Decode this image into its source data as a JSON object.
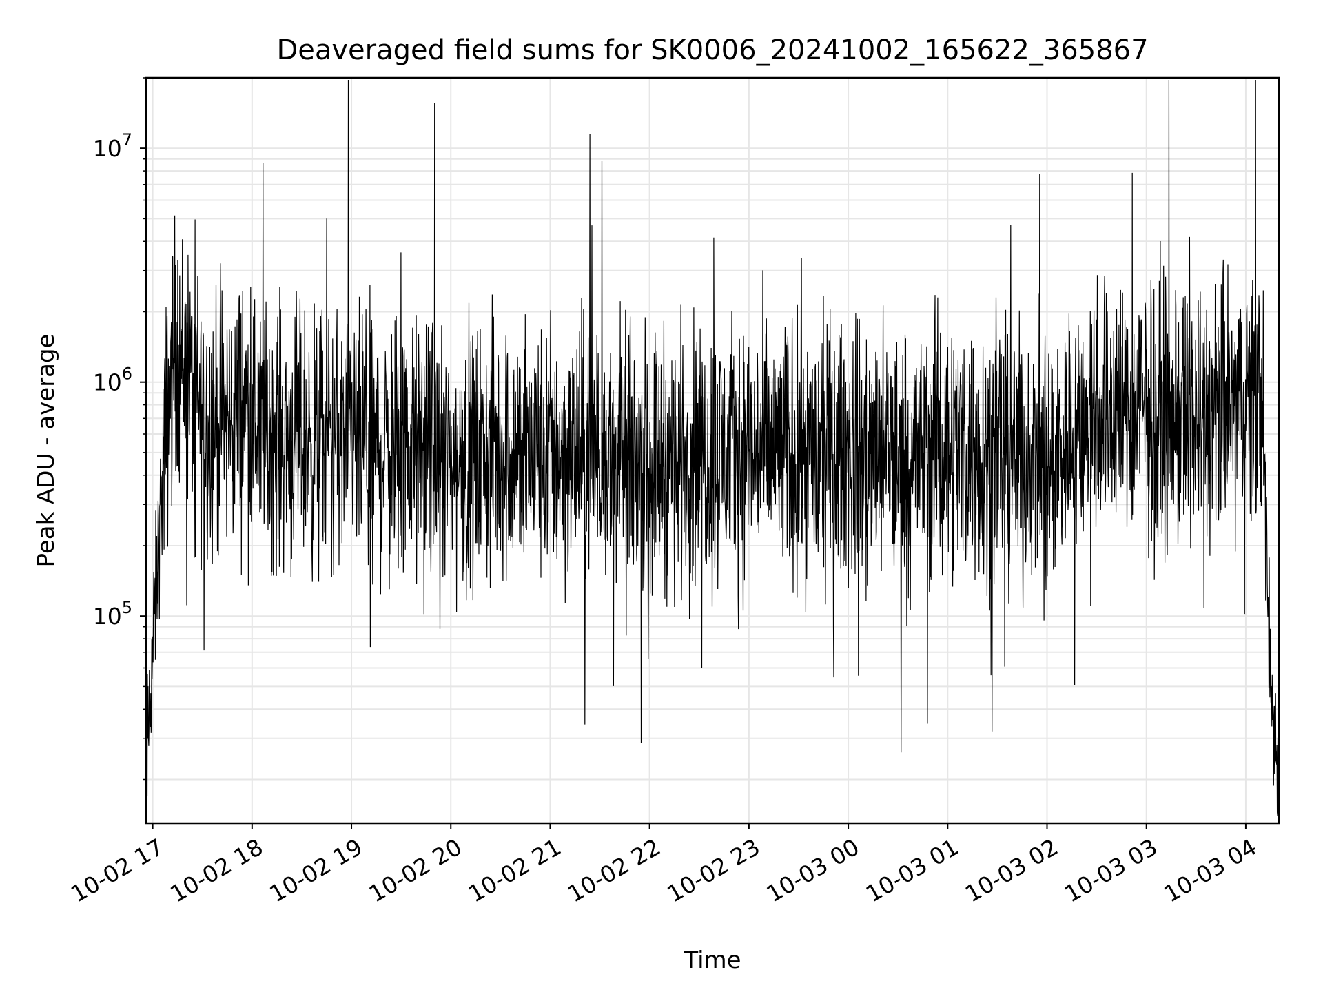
{
  "chart_data": {
    "type": "line",
    "title": "Deaveraged field sums for SK0006_20241002_165622_365867",
    "xlabel": "Time",
    "ylabel": "Peak ADU - average",
    "yscale": "log",
    "ylim": [
      13000,
      20000000
    ],
    "xlim": [
      "2024-10-02 16:56",
      "2024-10-03 04:20"
    ],
    "grid": true,
    "line_color": "#000000",
    "grid_color": "#e6e6e6",
    "x_ticks": [
      "10-02 17",
      "10-02 18",
      "10-02 19",
      "10-02 20",
      "10-02 21",
      "10-02 22",
      "10-02 23",
      "10-03 00",
      "10-03 01",
      "10-03 02",
      "10-03 03",
      "10-03 04"
    ],
    "y_ticks": [
      {
        "base": "10",
        "exp": "5",
        "value": 100000
      },
      {
        "base": "10",
        "exp": "6",
        "value": 1000000
      },
      {
        "base": "10",
        "exp": "7",
        "value": 10000000
      }
    ],
    "series": [
      {
        "x": [
          "2024-10-02 16:56",
          "2024-10-02 16:58",
          "2024-10-02 17:05",
          "2024-10-02 17:10",
          "2024-10-02 17:14",
          "2024-10-02 17:30",
          "2024-10-02 17:45",
          "2024-10-02 17:55",
          "2024-10-02 18:10",
          "2024-10-02 18:30",
          "2024-10-02 19:00",
          "2024-10-02 19:30",
          "2024-10-02 19:50",
          "2024-10-02 20:00",
          "2024-10-02 20:30",
          "2024-10-02 21:00",
          "2024-10-02 21:30",
          "2024-10-02 22:00",
          "2024-10-02 22:30",
          "2024-10-02 23:00",
          "2024-10-02 23:30",
          "2024-10-03 00:00",
          "2024-10-03 00:30",
          "2024-10-03 01:00",
          "2024-10-03 01:30",
          "2024-10-03 02:00",
          "2024-10-03 02:30",
          "2024-10-03 03:00",
          "2024-10-03 03:30",
          "2024-10-03 04:00",
          "2024-10-03 04:10",
          "2024-10-03 04:15",
          "2024-10-03 04:20"
        ],
        "y": [
          20000,
          40000,
          300000,
          900000,
          1500000,
          700000,
          650000,
          800000,
          600000,
          550000,
          550000,
          500000,
          500000,
          450000,
          500000,
          500000,
          500000,
          450000,
          500000,
          500000,
          500000,
          500000,
          450000,
          550000,
          500000,
          450000,
          800000,
          750000,
          700000,
          800000,
          900000,
          50000,
          20000
        ]
      }
    ]
  }
}
